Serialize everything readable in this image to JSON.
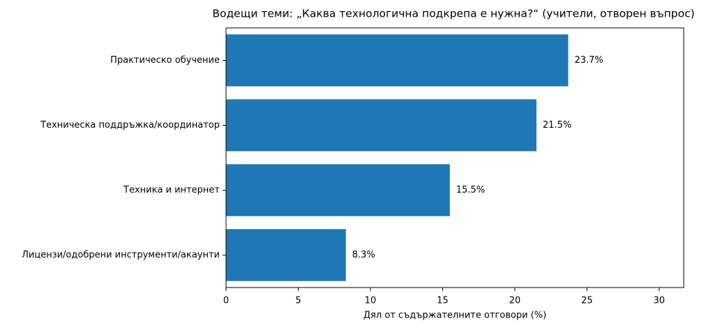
{
  "chart_data": {
    "type": "barh",
    "title": "Водещи теми: „Каква технологична подкрепа е нужна?“ (учители, отворен въпрос)",
    "xlabel": "Дял от съдържателните отговори (%)",
    "categories": [
      "Практическо обучение",
      "Техническа поддръжка/координатор",
      "Техника и интернет",
      "Лицензи/одобрени инструменти/акаунти"
    ],
    "values": [
      23.7,
      21.5,
      15.5,
      8.3
    ],
    "value_labels": [
      "23.7%",
      "21.5%",
      "15.5%",
      "8.3%"
    ],
    "color": "#1f77b4",
    "xlim": [
      0,
      31.7
    ],
    "xticks": [
      0,
      5,
      10,
      15,
      20,
      25,
      30
    ],
    "grid": false
  }
}
